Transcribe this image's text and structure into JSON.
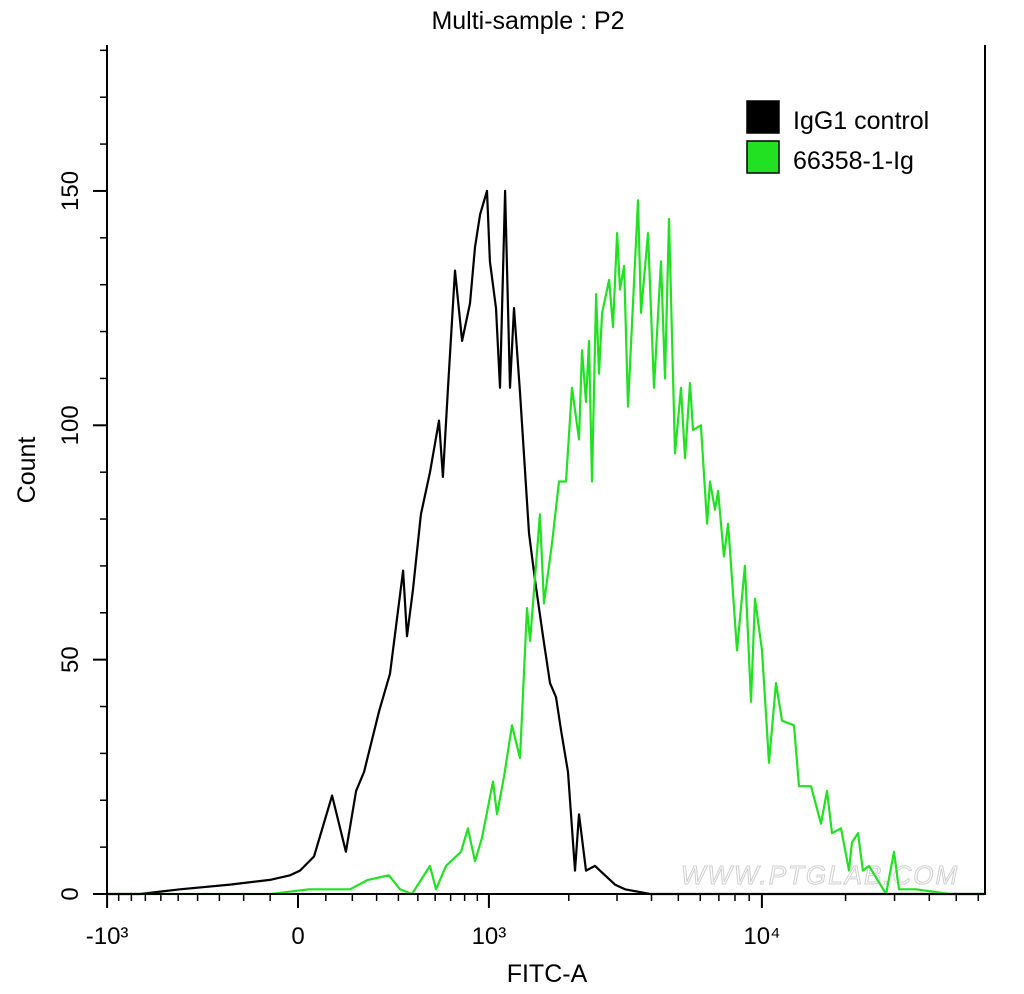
{
  "chart_data": {
    "type": "line",
    "title": "Multi-sample : P2",
    "xlabel": "FITC-A",
    "ylabel": "Count",
    "x_scale": "biexponential",
    "xlim": [
      -1000,
      63000
    ],
    "ylim": [
      0,
      181
    ],
    "grid": false,
    "legend_position": "top-right",
    "x_ticks": [
      {
        "value": -1000,
        "label": "-10³"
      },
      {
        "value": 0,
        "label": "0"
      },
      {
        "value": 1000,
        "label": "10³"
      },
      {
        "value": 10000,
        "label": "10⁴"
      }
    ],
    "y_ticks": [
      {
        "value": 0,
        "label": "0"
      },
      {
        "value": 50,
        "label": "50"
      },
      {
        "value": 100,
        "label": "100"
      },
      {
        "value": 150,
        "label": "150"
      }
    ],
    "series": [
      {
        "name": "IgG1 control",
        "color": "#000000",
        "x": [
          -1000,
          -737,
          -490,
          -255,
          -101,
          -28,
          7,
          57,
          123,
          175,
          215,
          247,
          311,
          360,
          423,
          443,
          474,
          517,
          569,
          624,
          649,
          682,
          730,
          781,
          841,
          881,
          923,
          983,
          1009,
          1066,
          1104,
          1155,
          1206,
          1249,
          1317,
          1423,
          1499,
          1606,
          1705,
          1795,
          1872,
          1987,
          2108,
          2181,
          2313,
          2495,
          2712,
          2949,
          3206,
          3951,
          63000
        ],
        "y": [
          0,
          0,
          1,
          2,
          3,
          4,
          5,
          8,
          21,
          9,
          22,
          26,
          39,
          47,
          69,
          55,
          65,
          81,
          90,
          101,
          89,
          108,
          133,
          118,
          126,
          138,
          145,
          150,
          135,
          125,
          108,
          150,
          108,
          125,
          107,
          77,
          67,
          55,
          45,
          42,
          35,
          26,
          5,
          17,
          5,
          6,
          4,
          2,
          1,
          0,
          0
        ]
      },
      {
        "name": "66358-1-Ig",
        "color": "#22e022",
        "x": [
          -1000,
          -97,
          39,
          191,
          263,
          355,
          408,
          469,
          569,
          605,
          669,
          773,
          825,
          881,
          939,
          1037,
          1075,
          1144,
          1228,
          1317,
          1399,
          1437,
          1564,
          1619,
          1735,
          1841,
          1954,
          2055,
          2181,
          2237,
          2313,
          2372,
          2432,
          2517,
          2580,
          2647,
          2807,
          2902,
          3001,
          3077,
          3182,
          3288,
          3575,
          3664,
          3884,
          4085,
          4330,
          4476,
          4627,
          4863,
          5113,
          5285,
          5508,
          5650,
          6033,
          6347,
          6506,
          6781,
          6953,
          7301,
          7555,
          8136,
          8690,
          9138,
          9443,
          10006,
          10604,
          11240,
          11816,
          13046,
          13597,
          15024,
          16310,
          17144,
          17879,
          19260,
          20571,
          21092,
          22167,
          23091,
          24274,
          27972,
          29864,
          31132,
          35841,
          47451,
          57427,
          63000
        ],
        "y": [
          0,
          0,
          1,
          1,
          3,
          4,
          1,
          0,
          6,
          1,
          6,
          9,
          14,
          7,
          12,
          24,
          17,
          25,
          36,
          29,
          61,
          54,
          81,
          62,
          75,
          88,
          88,
          108,
          97,
          116,
          105,
          118,
          88,
          128,
          111,
          124,
          131,
          121,
          141,
          129,
          134,
          104,
          148,
          124,
          141,
          108,
          135,
          110,
          144,
          94,
          108,
          93,
          109,
          99,
          100,
          79,
          88,
          82,
          86,
          72,
          79,
          52,
          70,
          41,
          63,
          52,
          28,
          45,
          37,
          36,
          23,
          23,
          15,
          22,
          13,
          14,
          5,
          11,
          13,
          5,
          6,
          0,
          9,
          1,
          1,
          0,
          0,
          0
        ]
      }
    ]
  },
  "watermark": "WWW.PTGLAB.COM"
}
